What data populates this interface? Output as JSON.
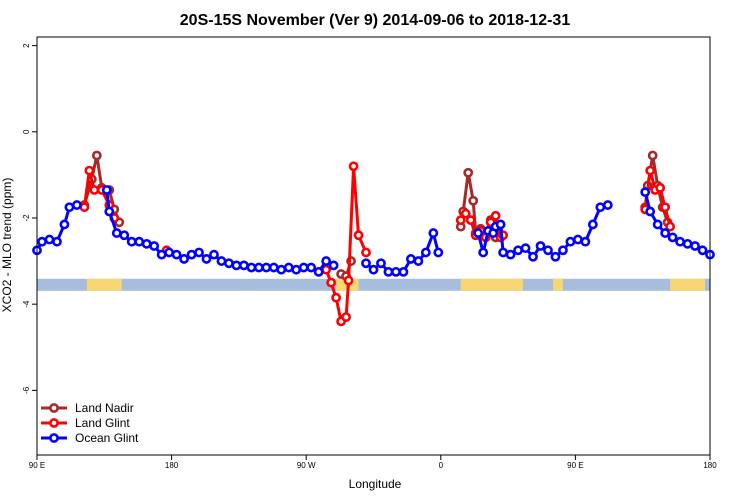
{
  "chart_data": {
    "type": "line",
    "title": "20S-15S November (Ver 9)   2014-09-06 to 2018-12-31",
    "xlabel": "Longitude",
    "ylabel": "XCO2 - MLO trend (ppm)",
    "xlim": [
      -90,
      180
    ],
    "ylim": [
      -7.5,
      2.2
    ],
    "x_ticks": [
      {
        "value": -90,
        "label": "90 E"
      },
      {
        "value": -36,
        "label": "180"
      },
      {
        "value": 18,
        "label": "90 W"
      },
      {
        "value": 72,
        "label": "0"
      },
      {
        "value": 126,
        "label": "90 E"
      },
      {
        "value": 180,
        "label": "180"
      }
    ],
    "y_ticks": [
      -6,
      -4,
      -2,
      0,
      2
    ],
    "grid": false,
    "legend_position": "bottom-left",
    "land_mask": {
      "y": -3.55,
      "ocean_color": "#a6bddb",
      "land_color": "#f7d774",
      "land_segments": [
        [
          -70,
          -56
        ],
        [
          30,
          39
        ],
        [
          80,
          105
        ],
        [
          117,
          121
        ],
        [
          164,
          178
        ]
      ]
    },
    "series": [
      {
        "name": "Land Nadir",
        "color": "#a52a2a",
        "points": [
          [
            -71,
            -1.7
          ],
          [
            -68,
            -1.1
          ],
          [
            -66,
            -0.55
          ],
          [
            -64,
            -1.3
          ],
          [
            -61,
            -1.35
          ],
          [
            -59,
            -1.8
          ],
          [
            -57,
            -2.1
          ],
          [
            32,
            -3.3
          ],
          [
            34,
            -3.35
          ],
          [
            36,
            -3.0
          ],
          [
            80,
            -2.2
          ],
          [
            81,
            -1.85
          ],
          [
            83,
            -0.95
          ],
          [
            85,
            -1.6
          ],
          [
            86,
            -2.35
          ],
          [
            88,
            -2.25
          ],
          [
            90,
            -2.4
          ],
          [
            92,
            -2.05
          ],
          [
            94,
            -2.45
          ],
          [
            95,
            -2.25
          ],
          [
            154,
            -1.75
          ],
          [
            155,
            -1.25
          ],
          [
            157,
            -0.55
          ],
          [
            159,
            -1.25
          ],
          [
            161,
            -1.75
          ],
          [
            163,
            -2.1
          ]
        ]
      },
      {
        "name": "Land Glint",
        "color": "#ff0000",
        "points": [
          [
            -71,
            -1.75
          ],
          [
            -69,
            -0.9
          ],
          [
            -67,
            -1.35
          ],
          [
            -64,
            -1.35
          ],
          [
            -61,
            -1.7
          ],
          [
            -59,
            -2.0
          ],
          [
            -38,
            -2.75
          ],
          [
            26,
            -3.2
          ],
          [
            28,
            -3.5
          ],
          [
            30,
            -3.85
          ],
          [
            32,
            -4.4
          ],
          [
            34,
            -4.3
          ],
          [
            35,
            -3.45
          ],
          [
            37,
            -0.8
          ],
          [
            39,
            -2.4
          ],
          [
            42,
            -2.8
          ],
          [
            80,
            -2.05
          ],
          [
            82,
            -1.9
          ],
          [
            84,
            -2.05
          ],
          [
            86,
            -2.4
          ],
          [
            88,
            -2.3
          ],
          [
            90,
            -2.45
          ],
          [
            92,
            -2.1
          ],
          [
            94,
            -1.95
          ],
          [
            96,
            -2.45
          ],
          [
            97,
            -2.4
          ],
          [
            154,
            -1.8
          ],
          [
            156,
            -0.9
          ],
          [
            158,
            -1.35
          ],
          [
            160,
            -1.3
          ],
          [
            162,
            -1.75
          ],
          [
            164,
            -2.2
          ]
        ]
      },
      {
        "name": "Ocean Glint",
        "color": "#0000ff",
        "points": [
          [
            -90,
            -2.75
          ],
          [
            -88,
            -2.55
          ],
          [
            -85,
            -2.5
          ],
          [
            -82,
            -2.55
          ],
          [
            -79,
            -2.15
          ],
          [
            -77,
            -1.75
          ],
          [
            -74,
            -1.7
          ],
          [
            -62,
            -1.35
          ],
          [
            -61,
            -1.85
          ],
          [
            -58,
            -2.35
          ],
          [
            -55,
            -2.4
          ],
          [
            -52,
            -2.55
          ],
          [
            -49,
            -2.55
          ],
          [
            -46,
            -2.6
          ],
          [
            -43,
            -2.65
          ],
          [
            -40,
            -2.85
          ],
          [
            -37,
            -2.8
          ],
          [
            -34,
            -2.85
          ],
          [
            -31,
            -2.95
          ],
          [
            -28,
            -2.85
          ],
          [
            -25,
            -2.8
          ],
          [
            -22,
            -2.95
          ],
          [
            -19,
            -2.85
          ],
          [
            -16,
            -3.0
          ],
          [
            -13,
            -3.05
          ],
          [
            -10,
            -3.1
          ],
          [
            -7,
            -3.1
          ],
          [
            -4,
            -3.15
          ],
          [
            -1,
            -3.15
          ],
          [
            2,
            -3.15
          ],
          [
            5,
            -3.15
          ],
          [
            8,
            -3.2
          ],
          [
            11,
            -3.15
          ],
          [
            14,
            -3.2
          ],
          [
            17,
            -3.15
          ],
          [
            20,
            -3.15
          ],
          [
            23,
            -3.25
          ],
          [
            26,
            -3.0
          ],
          [
            29,
            -3.1
          ],
          [
            42,
            -3.05
          ],
          [
            45,
            -3.2
          ],
          [
            48,
            -3.05
          ],
          [
            51,
            -3.25
          ],
          [
            54,
            -3.25
          ],
          [
            57,
            -3.25
          ],
          [
            60,
            -2.95
          ],
          [
            63,
            -3.0
          ],
          [
            66,
            -2.8
          ],
          [
            69,
            -2.35
          ],
          [
            71,
            -2.8
          ],
          [
            87,
            -2.35
          ],
          [
            89,
            -2.8
          ],
          [
            91,
            -2.3
          ],
          [
            93,
            -2.35
          ],
          [
            94,
            -2.2
          ],
          [
            96,
            -2.15
          ],
          [
            97,
            -2.8
          ],
          [
            100,
            -2.85
          ],
          [
            103,
            -2.75
          ],
          [
            106,
            -2.7
          ],
          [
            109,
            -2.9
          ],
          [
            112,
            -2.65
          ],
          [
            115,
            -2.75
          ],
          [
            118,
            -2.9
          ],
          [
            121,
            -2.75
          ],
          [
            124,
            -2.55
          ],
          [
            127,
            -2.5
          ],
          [
            130,
            -2.55
          ],
          [
            133,
            -2.15
          ],
          [
            136,
            -1.75
          ],
          [
            139,
            -1.7
          ],
          [
            154,
            -1.4
          ],
          [
            156,
            -1.85
          ],
          [
            159,
            -2.15
          ],
          [
            162,
            -2.35
          ],
          [
            165,
            -2.45
          ],
          [
            168,
            -2.55
          ],
          [
            171,
            -2.6
          ],
          [
            174,
            -2.65
          ],
          [
            177,
            -2.75
          ],
          [
            180,
            -2.85
          ]
        ]
      }
    ]
  }
}
